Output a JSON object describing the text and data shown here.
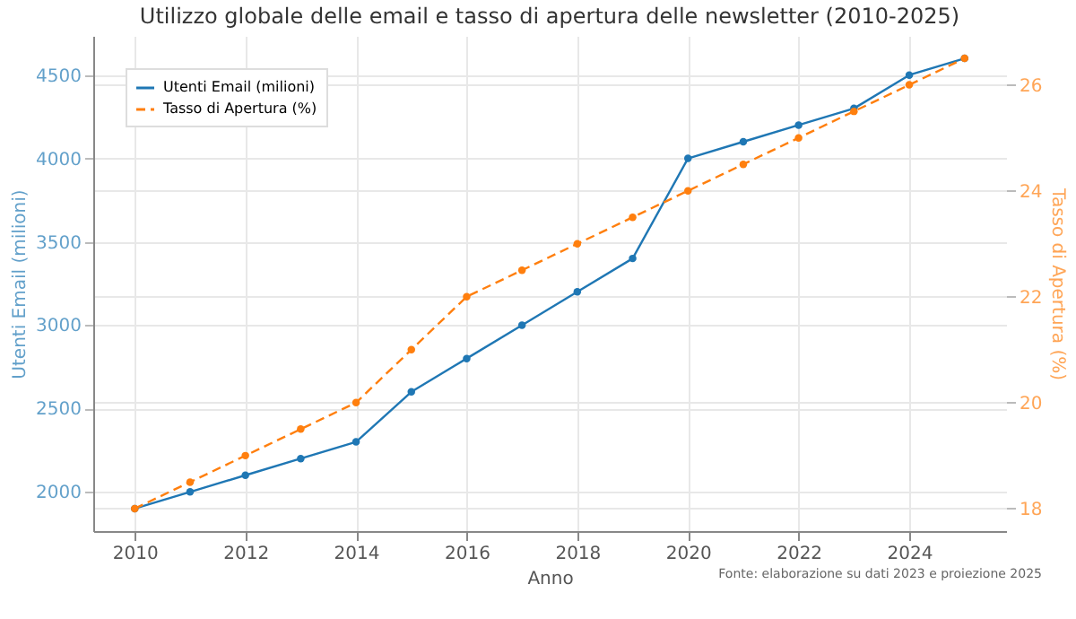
{
  "chart_data": {
    "type": "line",
    "title": "Utilizzo globale delle email e tasso di apertura delle newsletter (2010-2025)",
    "xlabel": "Anno",
    "ylabel": "Utenti Email (milioni)",
    "y2label": "Tasso di Apertura (%)",
    "x": [
      2010,
      2011,
      2012,
      2013,
      2014,
      2015,
      2016,
      2017,
      2018,
      2019,
      2020,
      2021,
      2022,
      2023,
      2024,
      2025
    ],
    "series": [
      {
        "name": "Utenti Email (milioni)",
        "color": "#1f77b4",
        "line_style": "solid",
        "values": [
          1900,
          2000,
          2100,
          2200,
          2300,
          2600,
          2800,
          3000,
          3200,
          3400,
          4000,
          4100,
          4200,
          4300,
          4500,
          4600
        ]
      },
      {
        "name": "Tasso di Apertura (%)",
        "color": "#ff7f0e",
        "line_style": "dashed",
        "axis": "y2",
        "values": [
          18.0,
          18.5,
          19.0,
          19.5,
          20.0,
          21.0,
          22.0,
          22.5,
          23.0,
          23.5,
          24.0,
          24.5,
          25.0,
          25.5,
          26.0,
          26.5
        ]
      }
    ],
    "xlim": [
      2009.25,
      2025.75
    ],
    "xticks": [
      2010,
      2012,
      2014,
      2016,
      2018,
      2020,
      2022,
      2024
    ],
    "ylim": [
      1765,
      4735
    ],
    "yticks": [
      2000,
      2500,
      3000,
      3500,
      4000,
      4500
    ],
    "y2lim": [
      17.575,
      26.925
    ],
    "y2ticks": [
      18,
      20,
      22,
      24,
      26
    ],
    "grid": true,
    "legend": "top left",
    "marker": "circle",
    "annotations": [
      "Fonte: elaborazione su dati 2023 e proiezione 2025"
    ]
  }
}
